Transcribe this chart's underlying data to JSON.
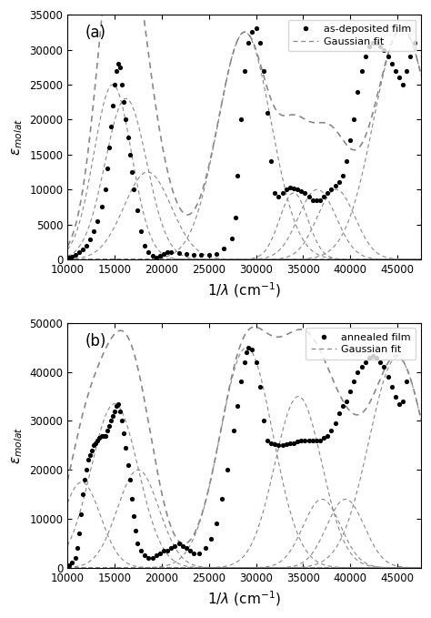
{
  "panel_a": {
    "label": "(a)",
    "legend_dot": "as-deposited film",
    "legend_line": "Gaussian fit",
    "ylim": [
      0,
      35000
    ],
    "yticks": [
      0,
      5000,
      10000,
      15000,
      20000,
      25000,
      30000,
      35000
    ],
    "xlim": [
      10000,
      47500
    ],
    "xticks": [
      10000,
      15000,
      20000,
      25000,
      30000,
      35000,
      40000,
      45000
    ],
    "gaussians": [
      {
        "amp": 25000,
        "cen": 14800,
        "wid": 2000
      },
      {
        "amp": 23000,
        "cen": 16200,
        "wid": 2200
      },
      {
        "amp": 12500,
        "cen": 18500,
        "wid": 2500
      },
      {
        "amp": 32500,
        "cen": 28800,
        "wid": 2800
      },
      {
        "amp": 9500,
        "cen": 34000,
        "wid": 1500
      },
      {
        "amp": 10000,
        "cen": 36500,
        "wid": 2000
      },
      {
        "amp": 10000,
        "cen": 38500,
        "wid": 2000
      },
      {
        "amp": 33000,
        "cen": 45500,
        "wid": 3000
      }
    ],
    "scatter_x": [
      10200,
      10500,
      10800,
      11200,
      11600,
      12000,
      12400,
      12800,
      13200,
      13600,
      14000,
      14200,
      14400,
      14600,
      14800,
      15000,
      15200,
      15400,
      15600,
      15800,
      16000,
      16200,
      16400,
      16600,
      16800,
      17000,
      17400,
      17800,
      18200,
      18600,
      19000,
      19400,
      19800,
      20200,
      20600,
      21000,
      21800,
      22600,
      23400,
      24200,
      25000,
      25800,
      26600,
      27400,
      27800,
      28000,
      28400,
      28800,
      29200,
      29600,
      30000,
      30400,
      30800,
      31200,
      31600,
      32000,
      32400,
      32800,
      33200,
      33600,
      34000,
      34400,
      34800,
      35200,
      35600,
      36000,
      36400,
      36800,
      37200,
      37600,
      38000,
      38400,
      38800,
      39200,
      39600,
      40000,
      40400,
      40800,
      41200,
      41600,
      42000,
      42400,
      42800,
      43200,
      43600,
      44000,
      44400,
      44800,
      45200,
      45600,
      46000,
      46400,
      46800
    ],
    "scatter_y": [
      200,
      400,
      600,
      1000,
      1400,
      2000,
      2800,
      4000,
      5500,
      7500,
      10000,
      13000,
      16000,
      19000,
      22000,
      25000,
      27000,
      28000,
      27500,
      25000,
      22500,
      20000,
      17500,
      15000,
      12500,
      10000,
      7000,
      4000,
      2000,
      1000,
      500,
      300,
      500,
      800,
      1000,
      1000,
      900,
      800,
      700,
      600,
      600,
      800,
      1500,
      3000,
      6000,
      12000,
      20000,
      27000,
      31000,
      32500,
      33000,
      31000,
      27000,
      21000,
      14000,
      9500,
      9000,
      9500,
      10000,
      10300,
      10200,
      10000,
      9800,
      9500,
      9000,
      8500,
      8500,
      8500,
      9000,
      9500,
      10000,
      10500,
      11000,
      12000,
      14000,
      17000,
      20000,
      24000,
      27000,
      29000,
      30500,
      31000,
      31000,
      30500,
      30000,
      29000,
      28000,
      27000,
      26000,
      25000,
      27000,
      29000,
      31000
    ]
  },
  "panel_b": {
    "label": "(b)",
    "legend_dot": "annealed film",
    "legend_line": "Gaussian fit",
    "ylim": [
      0,
      50000
    ],
    "yticks": [
      0,
      10000,
      20000,
      30000,
      40000,
      50000
    ],
    "xlim": [
      10000,
      47500
    ],
    "xticks": [
      10000,
      15000,
      20000,
      25000,
      30000,
      35000,
      40000,
      45000
    ],
    "gaussians": [
      {
        "amp": 17500,
        "cen": 11500,
        "wid": 2000
      },
      {
        "amp": 33500,
        "cen": 15000,
        "wid": 2500
      },
      {
        "amp": 20000,
        "cen": 17500,
        "wid": 2200
      },
      {
        "amp": 45000,
        "cen": 29000,
        "wid": 2800
      },
      {
        "amp": 35000,
        "cen": 34500,
        "wid": 2500
      },
      {
        "amp": 14000,
        "cen": 37000,
        "wid": 2000
      },
      {
        "amp": 14000,
        "cen": 39500,
        "wid": 2000
      },
      {
        "amp": 43000,
        "cen": 45000,
        "wid": 3000
      }
    ],
    "scatter_x": [
      10200,
      10500,
      10800,
      11000,
      11200,
      11400,
      11600,
      11800,
      12000,
      12200,
      12400,
      12600,
      12800,
      13000,
      13200,
      13400,
      13600,
      13800,
      14000,
      14200,
      14400,
      14600,
      14800,
      15000,
      15200,
      15400,
      15600,
      15800,
      16000,
      16200,
      16400,
      16600,
      16800,
      17000,
      17200,
      17400,
      17800,
      18200,
      18600,
      19000,
      19400,
      19800,
      20200,
      20600,
      21000,
      21400,
      21800,
      22200,
      22600,
      23000,
      23400,
      24000,
      24600,
      25200,
      25800,
      26400,
      27000,
      27600,
      28000,
      28400,
      28800,
      29000,
      29200,
      29600,
      30000,
      30400,
      30800,
      31200,
      31600,
      32000,
      32400,
      32800,
      33200,
      33600,
      34000,
      34400,
      34800,
      35200,
      35600,
      36000,
      36400,
      36800,
      37200,
      37600,
      38000,
      38400,
      38800,
      39200,
      39600,
      40000,
      40400,
      40800,
      41200,
      41600,
      42000,
      42400,
      42800,
      43200,
      43600,
      44000,
      44400,
      44800,
      45200,
      45600,
      46000,
      46400,
      46800
    ],
    "scatter_y": [
      500,
      1000,
      2000,
      4000,
      7000,
      11000,
      15000,
      18000,
      20000,
      22000,
      23000,
      24000,
      25000,
      25500,
      26000,
      26500,
      27000,
      27000,
      27000,
      28000,
      29000,
      30000,
      31000,
      32000,
      33000,
      33500,
      32000,
      30000,
      27500,
      24500,
      21000,
      18000,
      14000,
      10500,
      7500,
      5000,
      3500,
      2500,
      2000,
      2000,
      2500,
      3000,
      3500,
      3500,
      4000,
      4500,
      5000,
      4500,
      4000,
      3500,
      3000,
      3000,
      4000,
      6000,
      9000,
      14000,
      20000,
      28000,
      33000,
      38000,
      42000,
      44000,
      45000,
      44500,
      42000,
      37000,
      30000,
      26000,
      25500,
      25200,
      25000,
      25000,
      25200,
      25500,
      25500,
      25800,
      26000,
      26000,
      26000,
      26000,
      26000,
      26000,
      26500,
      27000,
      28000,
      29500,
      31500,
      33000,
      34000,
      36000,
      38000,
      40000,
      41000,
      42000,
      43000,
      43200,
      43000,
      42000,
      41000,
      39000,
      37000,
      35000,
      33500,
      34000,
      38000
    ]
  },
  "dot_color": "#000000",
  "fit_color": "#888888",
  "gauss_color": "#888888",
  "background": "#ffffff"
}
